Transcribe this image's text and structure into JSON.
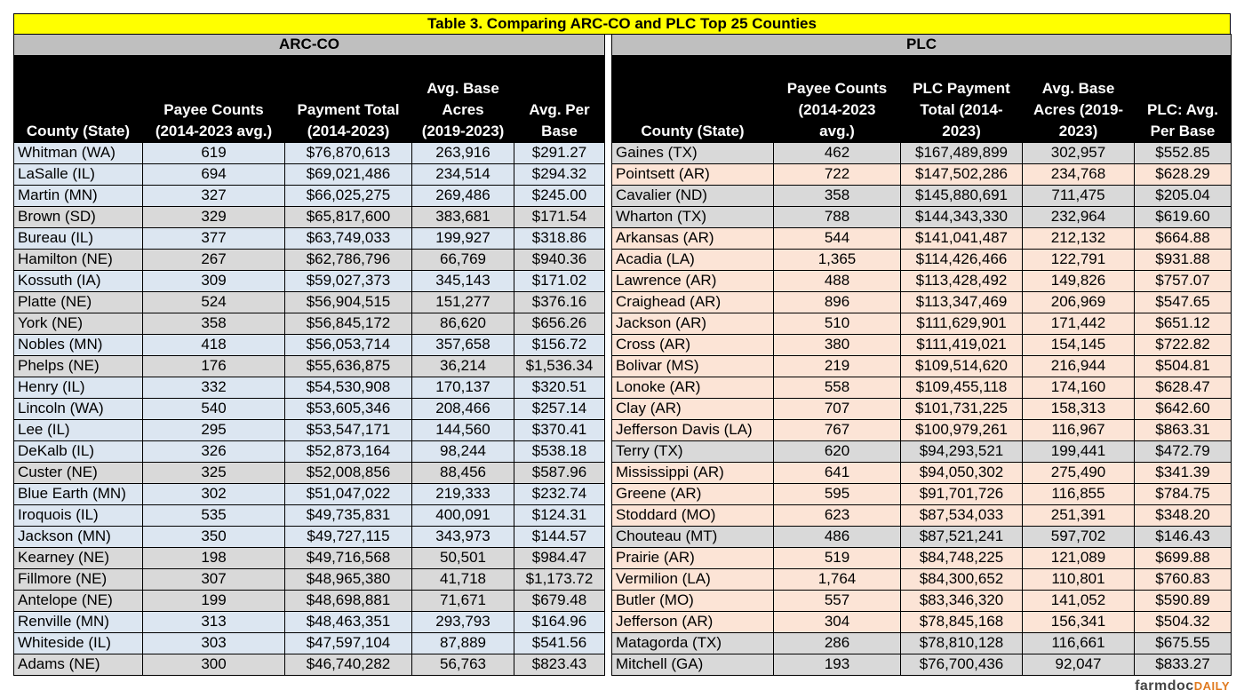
{
  "title": "Table 3. Comparing ARC-CO and PLC Top 25 Counties",
  "sections": [
    {
      "title": "ARC-CO",
      "headers": [
        [
          "County (State)"
        ],
        [
          "Payee Counts",
          "(2014-2023 avg.)"
        ],
        [
          "Payment Total",
          "(2014-2023)"
        ],
        [
          "Avg. Base",
          "Acres",
          "(2019-2023)"
        ],
        [
          "Avg. Per",
          "Base"
        ]
      ],
      "rows": [
        [
          "Whitman (WA)",
          "619",
          "$76,870,613",
          "263,916",
          "$291.27"
        ],
        [
          "LaSalle (IL)",
          "694",
          "$69,021,486",
          "234,514",
          "$294.32"
        ],
        [
          "Martin (MN)",
          "327",
          "$66,025,275",
          "269,486",
          "$245.00"
        ],
        [
          "Brown (SD)",
          "329",
          "$65,817,600",
          "383,681",
          "$171.54"
        ],
        [
          "Bureau (IL)",
          "377",
          "$63,749,033",
          "199,927",
          "$318.86"
        ],
        [
          "Hamilton (NE)",
          "267",
          "$62,786,796",
          "66,769",
          "$940.36"
        ],
        [
          "Kossuth (IA)",
          "309",
          "$59,027,373",
          "345,143",
          "$171.02"
        ],
        [
          "Platte (NE)",
          "524",
          "$56,904,515",
          "151,277",
          "$376.16"
        ],
        [
          "York (NE)",
          "358",
          "$56,845,172",
          "86,620",
          "$656.26"
        ],
        [
          "Nobles (MN)",
          "418",
          "$56,053,714",
          "357,658",
          "$156.72"
        ],
        [
          "Phelps (NE)",
          "176",
          "$55,636,875",
          "36,214",
          "$1,536.34"
        ],
        [
          "Henry (IL)",
          "332",
          "$54,530,908",
          "170,137",
          "$320.51"
        ],
        [
          "Lincoln (WA)",
          "540",
          "$53,605,346",
          "208,466",
          "$257.14"
        ],
        [
          "Lee (IL)",
          "295",
          "$53,547,171",
          "144,560",
          "$370.41"
        ],
        [
          "DeKalb (IL)",
          "326",
          "$52,873,164",
          "98,244",
          "$538.18"
        ],
        [
          "Custer (NE)",
          "325",
          "$52,008,856",
          "88,456",
          "$587.96"
        ],
        [
          "Blue Earth (MN)",
          "302",
          "$51,047,022",
          "219,333",
          "$232.74"
        ],
        [
          "Iroquois (IL)",
          "535",
          "$49,735,831",
          "400,091",
          "$124.31"
        ],
        [
          "Jackson (MN)",
          "350",
          "$49,727,115",
          "343,973",
          "$144.57"
        ],
        [
          "Kearney (NE)",
          "198",
          "$49,716,568",
          "50,501",
          "$984.47"
        ],
        [
          "Fillmore (NE)",
          "307",
          "$48,965,380",
          "41,718",
          "$1,173.72"
        ],
        [
          "Antelope (NE)",
          "199",
          "$48,698,881",
          "71,671",
          "$679.48"
        ],
        [
          "Renville (MN)",
          "313",
          "$48,463,351",
          "293,793",
          "$164.96"
        ],
        [
          "Whiteside (IL)",
          "303",
          "$47,597,104",
          "87,889",
          "$541.56"
        ],
        [
          "Adams (NE)",
          "300",
          "$46,740,282",
          "56,763",
          "$823.43"
        ]
      ]
    },
    {
      "title": "PLC",
      "headers": [
        [
          "County (State)"
        ],
        [
          "Payee Counts",
          "(2014-2023",
          "avg.)"
        ],
        [
          "PLC Payment",
          "Total (2014-",
          "2023)"
        ],
        [
          "Avg. Base",
          "Acres (2019-",
          "2023)"
        ],
        [
          "PLC: Avg.",
          "Per Base"
        ]
      ],
      "rows": [
        [
          "Gaines (TX)",
          "462",
          "$167,489,899",
          "302,957",
          "$552.85"
        ],
        [
          "Pointsett (AR)",
          "722",
          "$147,502,286",
          "234,768",
          "$628.29"
        ],
        [
          "Cavalier (ND)",
          "358",
          "$145,880,691",
          "711,475",
          "$205.04"
        ],
        [
          "Wharton (TX)",
          "788",
          "$144,343,330",
          "232,964",
          "$619.60"
        ],
        [
          "Arkansas (AR)",
          "544",
          "$141,041,487",
          "212,132",
          "$664.88"
        ],
        [
          "Acadia (LA)",
          "1,365",
          "$114,426,466",
          "122,791",
          "$931.88"
        ],
        [
          "Lawrence (AR)",
          "488",
          "$113,428,492",
          "149,826",
          "$757.07"
        ],
        [
          "Craighead (AR)",
          "896",
          "$113,347,469",
          "206,969",
          "$547.65"
        ],
        [
          "Jackson (AR)",
          "510",
          "$111,629,901",
          "171,442",
          "$651.12"
        ],
        [
          "Cross (AR)",
          "380",
          "$111,419,021",
          "154,145",
          "$722.82"
        ],
        [
          "Bolivar (MS)",
          "219",
          "$109,514,620",
          "216,944",
          "$504.81"
        ],
        [
          "Lonoke (AR)",
          "558",
          "$109,455,118",
          "174,160",
          "$628.47"
        ],
        [
          "Clay (AR)",
          "707",
          "$101,731,225",
          "158,313",
          "$642.60"
        ],
        [
          "Jefferson Davis (LA)",
          "767",
          "$100,979,261",
          "116,967",
          "$863.31"
        ],
        [
          "Terry (TX)",
          "620",
          "$94,293,521",
          "199,441",
          "$472.79"
        ],
        [
          "Mississippi (AR)",
          "641",
          "$94,050,302",
          "275,490",
          "$341.39"
        ],
        [
          "Greene (AR)",
          "595",
          "$91,701,726",
          "116,855",
          "$784.75"
        ],
        [
          "Stoddard (MO)",
          "623",
          "$87,534,033",
          "251,391",
          "$348.20"
        ],
        [
          "Chouteau (MT)",
          "486",
          "$87,521,241",
          "597,702",
          "$146.43"
        ],
        [
          "Prairie (AR)",
          "519",
          "$84,748,225",
          "121,089",
          "$699.88"
        ],
        [
          "Vermilion (LA)",
          "1,764",
          "$84,300,652",
          "110,801",
          "$760.83"
        ],
        [
          "Butler (MO)",
          "557",
          "$83,346,320",
          "141,052",
          "$590.89"
        ],
        [
          "Jefferson (AR)",
          "304",
          "$78,845,168",
          "156,341",
          "$504.32"
        ],
        [
          "Matagorda (TX)",
          "286",
          "$78,810,128",
          "116,661",
          "$675.55"
        ],
        [
          "Mitchell (GA)",
          "193",
          "$76,700,436",
          "92,047",
          "$833.27"
        ]
      ]
    }
  ],
  "footer": {
    "brand": "farmdoc",
    "tag": "DAILY"
  }
}
